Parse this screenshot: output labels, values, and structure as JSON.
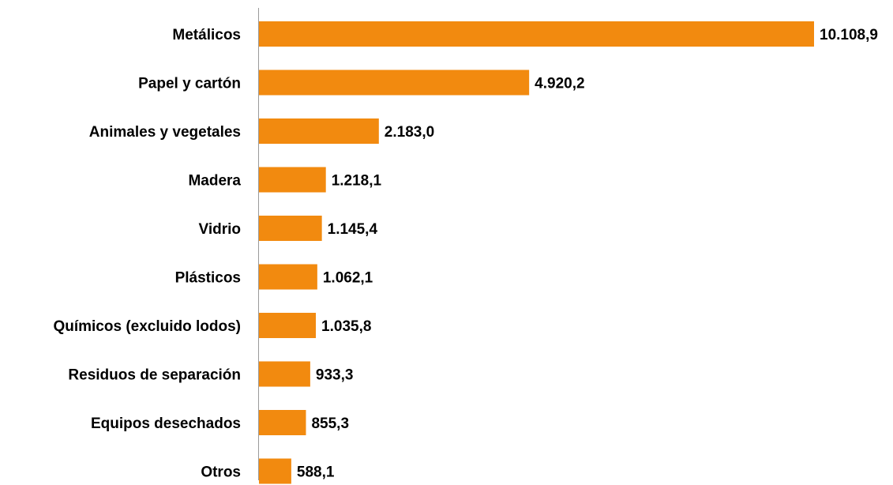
{
  "chart_data": {
    "type": "bar",
    "orientation": "horizontal",
    "categories": [
      "Metálicos",
      "Papel y cartón",
      "Animales y vegetales",
      "Madera",
      "Vidrio",
      "Plásticos",
      "Químicos (excluido lodos)",
      "Residuos de separación",
      "Equipos desechados",
      "Otros"
    ],
    "values": [
      10108.9,
      4920.2,
      2183.0,
      1218.1,
      1145.4,
      1062.1,
      1035.8,
      933.3,
      855.3,
      588.1
    ],
    "value_labels": [
      "10.108,9",
      "4.920,2",
      "2.183,0",
      "1.218,1",
      "1.145,4",
      "1.062,1",
      "1.035,8",
      "933,3",
      "855,3",
      "588,1"
    ],
    "title": "",
    "xlabel": "",
    "ylabel": "",
    "xlim": [
      0,
      10108.9
    ],
    "grid": false,
    "legend": "none",
    "bar_color": "#f28a0f"
  }
}
